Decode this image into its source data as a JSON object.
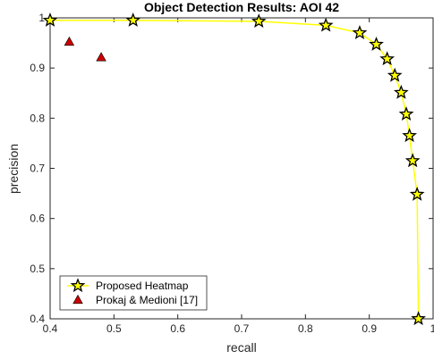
{
  "chart_data": {
    "type": "scatter",
    "title": "Object Detection Results: AOI 42",
    "xlabel": "recall",
    "ylabel": "precision",
    "xlim": [
      0.4,
      1.0
    ],
    "ylim": [
      0.4,
      1.0
    ],
    "xticks": [
      0.4,
      0.5,
      0.6,
      0.7,
      0.8,
      0.9,
      1
    ],
    "yticks": [
      0.4,
      0.5,
      0.6,
      0.7,
      0.8,
      0.9,
      1
    ],
    "xtick_labels": [
      "0.4",
      "0.5",
      "0.6",
      "0.7",
      "0.8",
      "0.9",
      "1"
    ],
    "ytick_labels": [
      "0.4",
      "0.5",
      "0.6",
      "0.7",
      "0.8",
      "0.9",
      "1"
    ],
    "grid": false,
    "legend_position": "bottom-left",
    "series": [
      {
        "name": "Proposed Heatmap",
        "marker": "star",
        "line": true,
        "color": "#ffff00",
        "marker_edge": "#000000",
        "x": [
          0.4,
          0.53,
          0.727,
          0.832,
          0.885,
          0.911,
          0.928,
          0.94,
          0.95,
          0.958,
          0.963,
          0.968,
          0.975,
          0.977
        ],
        "y": [
          0.995,
          0.995,
          0.993,
          0.985,
          0.97,
          0.947,
          0.918,
          0.885,
          0.851,
          0.808,
          0.765,
          0.715,
          0.648,
          0.4
        ]
      },
      {
        "name": "Prokaj & Medioni [17]",
        "marker": "triangle",
        "line": false,
        "color": "#cc0000",
        "marker_edge": "#000000",
        "x": [
          0.43,
          0.48
        ],
        "y": [
          0.952,
          0.921
        ]
      }
    ]
  }
}
